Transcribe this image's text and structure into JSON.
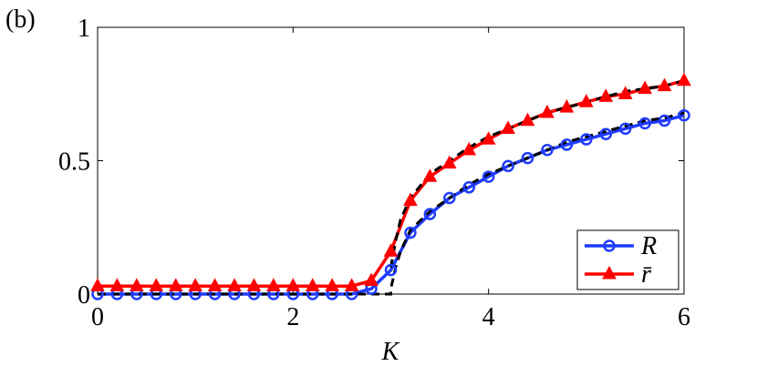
{
  "panel_label": "(b)",
  "chart_data": {
    "type": "line",
    "title": "",
    "xlabel": "K",
    "ylabel": "",
    "xlim": [
      0,
      6
    ],
    "ylim": [
      0,
      1
    ],
    "xticks": [
      0,
      2,
      4,
      6
    ],
    "xtick_labels": [
      "0",
      "2",
      "4",
      "6"
    ],
    "yticks": [
      0,
      0.5,
      1
    ],
    "ytick_labels": [
      "0",
      "0.5",
      "1"
    ],
    "grid": false,
    "legend_position": "bottom-right",
    "x": [
      0,
      0.2,
      0.4,
      0.6,
      0.8,
      1.0,
      1.2,
      1.4,
      1.6,
      1.8,
      2.0,
      2.2,
      2.4,
      2.6,
      2.8,
      3.0,
      3.2,
      3.4,
      3.6,
      3.8,
      4.0,
      4.2,
      4.4,
      4.6,
      4.8,
      5.0,
      5.2,
      5.4,
      5.6,
      5.8,
      6.0
    ],
    "series": [
      {
        "name": "R",
        "color": "#1f3cff",
        "marker": "circle",
        "values": [
          0.0,
          0.0,
          0.0,
          0.0,
          0.0,
          0.0,
          0.0,
          0.0,
          0.0,
          0.0,
          0.0,
          0.0,
          0.0,
          0.0,
          0.02,
          0.09,
          0.23,
          0.3,
          0.36,
          0.4,
          0.44,
          0.48,
          0.51,
          0.54,
          0.56,
          0.58,
          0.6,
          0.62,
          0.64,
          0.65,
          0.67
        ]
      },
      {
        "name": "r̄",
        "color": "#ff0000",
        "marker": "triangle",
        "values": [
          0.03,
          0.03,
          0.03,
          0.03,
          0.03,
          0.03,
          0.03,
          0.03,
          0.03,
          0.03,
          0.03,
          0.03,
          0.03,
          0.03,
          0.05,
          0.16,
          0.35,
          0.44,
          0.49,
          0.54,
          0.58,
          0.62,
          0.65,
          0.68,
          0.7,
          0.72,
          0.74,
          0.75,
          0.77,
          0.78,
          0.8
        ]
      }
    ],
    "reference_line": {
      "style": "dashed",
      "color": "#000000",
      "x": [
        0,
        3.0,
        3.0,
        3.05,
        3.1,
        3.2,
        3.4,
        3.6,
        3.8,
        4.0,
        4.2,
        4.4,
        4.6,
        4.8,
        5.0,
        5.2,
        5.4,
        5.6,
        5.8,
        6.0
      ],
      "values": [
        0.0,
        0.0,
        0.02,
        0.1,
        0.16,
        0.24,
        0.31,
        0.36,
        0.41,
        0.45,
        0.48,
        0.51,
        0.54,
        0.57,
        0.59,
        0.61,
        0.63,
        0.65,
        0.66,
        0.68
      ]
    },
    "reference_line_2": {
      "style": "dashed",
      "color": "#000000",
      "x": [
        3.0,
        3.05,
        3.1,
        3.2,
        3.4,
        3.6,
        3.8,
        4.0,
        4.2,
        4.4,
        4.6,
        4.8,
        5.0,
        5.2,
        5.4,
        5.6,
        5.8,
        6.0
      ],
      "values": [
        0.1,
        0.2,
        0.28,
        0.36,
        0.45,
        0.5,
        0.55,
        0.59,
        0.62,
        0.65,
        0.68,
        0.7,
        0.72,
        0.74,
        0.76,
        0.77,
        0.78,
        0.8
      ]
    }
  }
}
